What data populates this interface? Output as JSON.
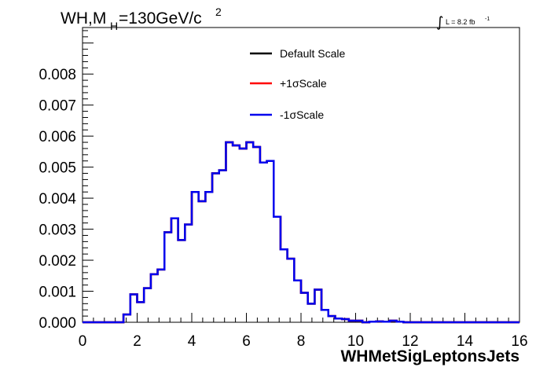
{
  "title": {
    "prefix": "WH,M",
    "subscript": "H",
    "main": "=130GeV/c",
    "superscript": "2"
  },
  "lumi": {
    "integral": "∫",
    "text": "L = 8.2 fb",
    "superscript": "-1"
  },
  "chart_data": {
    "type": "histogram",
    "xlabel": "WHMetSigLeptonsJets",
    "ylabel": "",
    "xlim": [
      0,
      16
    ],
    "ylim": [
      0,
      0.0095
    ],
    "xticks": [
      0,
      2,
      4,
      6,
      8,
      10,
      12,
      14,
      16
    ],
    "xtick_labels": [
      "0",
      "2",
      "4",
      "6",
      "8",
      "10",
      "12",
      "14",
      "16"
    ],
    "yticks": [
      0,
      0.001,
      0.002,
      0.003,
      0.004,
      0.005,
      0.006,
      0.007,
      0.008
    ],
    "ytick_labels": [
      "0.000",
      "0.001",
      "0.002",
      "0.003",
      "0.004",
      "0.005",
      "0.006",
      "0.007",
      "0.008"
    ],
    "bin_width": 0.25,
    "bin_start": 0,
    "legend_position": "top-center",
    "series": [
      {
        "name": "Default Scale",
        "color": "#000000",
        "values": [
          0,
          0,
          0,
          0,
          0,
          0,
          0.00025,
          0.0009,
          0.00065,
          0.0011,
          0.00155,
          0.0017,
          0.0029,
          0.00335,
          0.00265,
          0.00315,
          0.0042,
          0.0039,
          0.0042,
          0.0048,
          0.0049,
          0.0058,
          0.0057,
          0.0056,
          0.0058,
          0.00565,
          0.00515,
          0.0052,
          0.0034,
          0.00235,
          0.00205,
          0.00135,
          0.00095,
          0.0006,
          0.00105,
          0.0004,
          0.0002,
          0.00012,
          0.0001,
          5e-05,
          5e-05,
          0,
          2e-05,
          3e-05,
          2e-05,
          5e-05,
          2e-05,
          0,
          0,
          0,
          0,
          0,
          0,
          0,
          0,
          0,
          0,
          0,
          0,
          0,
          0,
          0,
          0,
          0
        ]
      },
      {
        "name": "+1σScale",
        "color": "#ff0000",
        "values": [
          0,
          0,
          0,
          0,
          0,
          0,
          0.00025,
          0.0009,
          0.00065,
          0.0011,
          0.00155,
          0.0017,
          0.0029,
          0.00335,
          0.00265,
          0.00315,
          0.0042,
          0.0039,
          0.0042,
          0.0048,
          0.0049,
          0.0058,
          0.0057,
          0.0056,
          0.0058,
          0.00565,
          0.00515,
          0.0052,
          0.0034,
          0.00235,
          0.00205,
          0.00135,
          0.00095,
          0.0006,
          0.00105,
          0.0004,
          0.0002,
          0.00012,
          0.0001,
          5e-05,
          5e-05,
          0,
          2e-05,
          3e-05,
          2e-05,
          5e-05,
          2e-05,
          0,
          0,
          0,
          0,
          0,
          0,
          0,
          0,
          0,
          0,
          0,
          0,
          0,
          0,
          0,
          0,
          0
        ]
      },
      {
        "name": "-1σScale",
        "color": "#0000ee",
        "values": [
          0,
          0,
          0,
          0,
          0,
          0,
          0.00025,
          0.0009,
          0.00065,
          0.0011,
          0.00155,
          0.0017,
          0.0029,
          0.00335,
          0.00265,
          0.00315,
          0.0042,
          0.0039,
          0.0042,
          0.0048,
          0.0049,
          0.0058,
          0.0057,
          0.0056,
          0.0058,
          0.00565,
          0.00515,
          0.0052,
          0.0034,
          0.00235,
          0.00205,
          0.00135,
          0.00095,
          0.0006,
          0.00105,
          0.0004,
          0.0002,
          0.00012,
          0.0001,
          5e-05,
          5e-05,
          0,
          2e-05,
          3e-05,
          2e-05,
          5e-05,
          2e-05,
          0,
          0,
          0,
          0,
          0,
          0,
          0,
          0,
          0,
          0,
          0,
          0,
          0,
          0,
          0,
          0,
          0
        ]
      }
    ]
  }
}
